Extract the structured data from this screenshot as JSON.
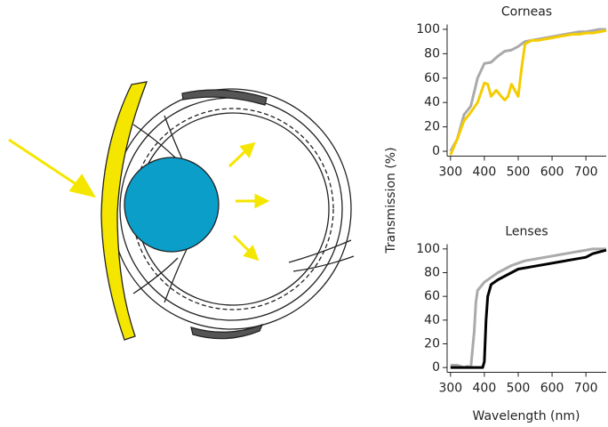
{
  "ylabel": "Transmission (%)",
  "xlabel": "Wavelength (nm)",
  "chart_data": [
    {
      "type": "line",
      "title": "Corneas",
      "xlim": [
        290,
        760
      ],
      "ylim": [
        -4,
        104
      ],
      "xticks": [
        300,
        400,
        500,
        600,
        700
      ],
      "yticks": [
        0,
        20,
        40,
        60,
        80,
        100
      ],
      "series": [
        {
          "color": "#aaaaaa",
          "x": [
            300,
            320,
            340,
            360,
            380,
            400,
            420,
            440,
            460,
            480,
            500,
            520,
            540,
            560,
            580,
            600,
            620,
            640,
            660,
            680,
            700,
            720,
            740,
            760
          ],
          "values": [
            0,
            10,
            30,
            37,
            60,
            72,
            73,
            78,
            82,
            83,
            86,
            90,
            91,
            92,
            93,
            94,
            95,
            96,
            97,
            98,
            98,
            99,
            100,
            100
          ]
        },
        {
          "color": "#f5cc00",
          "x": [
            300,
            320,
            340,
            360,
            380,
            400,
            410,
            420,
            435,
            450,
            460,
            470,
            480,
            490,
            500,
            510,
            520,
            540,
            560,
            580,
            600,
            620,
            640,
            660,
            680,
            700,
            720,
            740,
            760
          ],
          "values": [
            -3,
            10,
            25,
            32,
            40,
            56,
            55,
            45,
            50,
            45,
            42,
            45,
            55,
            50,
            45,
            68,
            88,
            91,
            91,
            92,
            93,
            94,
            95,
            96,
            96,
            97,
            97,
            98,
            99
          ]
        }
      ]
    },
    {
      "type": "line",
      "title": "Lenses",
      "xlim": [
        290,
        760
      ],
      "ylim": [
        -4,
        104
      ],
      "xticks": [
        300,
        400,
        500,
        600,
        700
      ],
      "yticks": [
        0,
        20,
        40,
        60,
        80,
        100
      ],
      "series": [
        {
          "color": "#aaaaaa",
          "x": [
            300,
            320,
            340,
            350,
            360,
            370,
            375,
            380,
            400,
            420,
            440,
            460,
            480,
            500,
            520,
            540,
            560,
            580,
            600,
            620,
            640,
            660,
            680,
            700,
            720,
            760
          ],
          "values": [
            2,
            2,
            0,
            1,
            0,
            30,
            55,
            65,
            72,
            76,
            80,
            83,
            86,
            88,
            90,
            91,
            92,
            93,
            94,
            95,
            96,
            97,
            98,
            99,
            100,
            100
          ]
        },
        {
          "color": "#000000",
          "x": [
            300,
            340,
            380,
            395,
            400,
            405,
            410,
            420,
            440,
            460,
            480,
            500,
            540,
            580,
            620,
            660,
            700,
            720,
            760
          ],
          "values": [
            0,
            0,
            0,
            0,
            5,
            40,
            60,
            70,
            74,
            77,
            80,
            83,
            85,
            87,
            89,
            91,
            93,
            96,
            99
          ]
        }
      ]
    }
  ]
}
